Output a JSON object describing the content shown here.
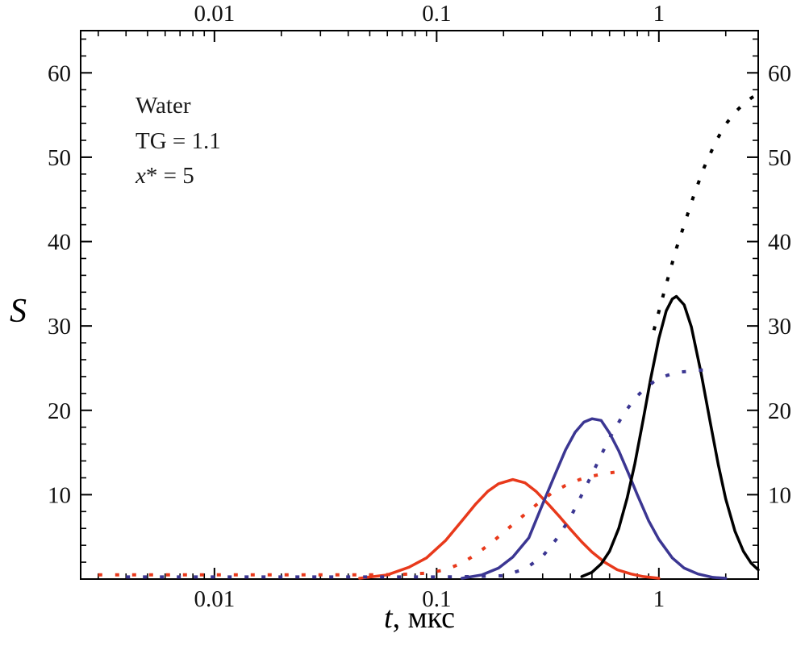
{
  "figure": {
    "annotation": {
      "line1": "Water",
      "line2": "TG = 1.1",
      "line3_var": "x",
      "line3_rest": "* = 5"
    },
    "xlabel_var": "t",
    "xlabel_rest": ", мкс",
    "ylabel": "S"
  },
  "chart_data": {
    "type": "line",
    "title": "",
    "x_scale": "log",
    "xlabel": "t, мкс",
    "ylabel": "S",
    "xlim": [
      0.0025,
      2.8
    ],
    "ylim": [
      0,
      65
    ],
    "grid": false,
    "legend": "none",
    "annotations": [
      "Water",
      "TG = 1.1",
      "x* = 5"
    ],
    "x_ticks": [
      {
        "v": 0.01,
        "label": "0.01"
      },
      {
        "v": 0.1,
        "label": "0.1"
      },
      {
        "v": 1,
        "label": "1"
      }
    ],
    "y_ticks": [
      {
        "v": 10,
        "label": "10"
      },
      {
        "v": 20,
        "label": "20"
      },
      {
        "v": 30,
        "label": "30"
      },
      {
        "v": 40,
        "label": "40"
      },
      {
        "v": 50,
        "label": "50"
      },
      {
        "v": 60,
        "label": "60"
      }
    ],
    "colors": {
      "red": "#e8391b",
      "blue": "#3b3692",
      "black": "#000000"
    },
    "series": [
      {
        "name": "red-solid-peak",
        "color": "#e8391b",
        "line_style": "solid",
        "x": [
          0.045,
          0.06,
          0.075,
          0.09,
          0.11,
          0.13,
          0.15,
          0.17,
          0.19,
          0.22,
          0.25,
          0.28,
          0.32,
          0.36,
          0.4,
          0.45,
          0.5,
          0.57,
          0.65,
          0.75,
          0.85,
          1.0
        ],
        "y": [
          0.1,
          0.5,
          1.4,
          2.5,
          4.6,
          6.9,
          8.9,
          10.4,
          11.3,
          11.8,
          11.4,
          10.4,
          8.8,
          7.3,
          5.9,
          4.4,
          3.2,
          2.0,
          1.1,
          0.6,
          0.3,
          0.1
        ]
      },
      {
        "name": "blue-solid-peak",
        "color": "#3b3692",
        "line_style": "solid",
        "x": [
          0.13,
          0.16,
          0.19,
          0.22,
          0.26,
          0.3,
          0.34,
          0.38,
          0.42,
          0.46,
          0.5,
          0.55,
          0.6,
          0.66,
          0.73,
          0.8,
          0.9,
          1.0,
          1.15,
          1.3,
          1.5,
          1.75,
          2.0
        ],
        "y": [
          0.1,
          0.5,
          1.3,
          2.6,
          4.9,
          8.9,
          12.3,
          15.3,
          17.4,
          18.6,
          19.0,
          18.8,
          17.3,
          15.2,
          12.5,
          10.0,
          6.9,
          4.7,
          2.5,
          1.3,
          0.6,
          0.2,
          0.1
        ]
      },
      {
        "name": "black-solid-peak",
        "color": "#000000",
        "line_style": "solid",
        "x": [
          0.45,
          0.5,
          0.55,
          0.6,
          0.66,
          0.72,
          0.78,
          0.85,
          0.92,
          1.0,
          1.08,
          1.15,
          1.2,
          1.3,
          1.4,
          1.55,
          1.7,
          1.85,
          2.0,
          2.2,
          2.4,
          2.6,
          2.8
        ],
        "y": [
          0.3,
          0.8,
          1.8,
          3.3,
          6.0,
          9.6,
          13.7,
          18.9,
          23.8,
          28.5,
          31.8,
          33.2,
          33.5,
          32.5,
          29.9,
          24.4,
          18.7,
          13.6,
          9.5,
          5.7,
          3.3,
          1.9,
          1.1
        ]
      },
      {
        "name": "red-dotted-cumulative",
        "color": "#e8391b",
        "line_style": "dashed",
        "x": [
          0.003,
          0.005,
          0.008,
          0.013,
          0.02,
          0.03,
          0.05,
          0.07,
          0.09,
          0.11,
          0.13,
          0.15,
          0.18,
          0.21,
          0.25,
          0.29,
          0.33,
          0.38,
          0.44,
          0.5,
          0.57,
          0.65,
          0.7
        ],
        "y": [
          0.5,
          0.5,
          0.5,
          0.5,
          0.5,
          0.5,
          0.5,
          0.55,
          0.7,
          1.1,
          1.9,
          2.9,
          4.5,
          6.0,
          7.7,
          9.1,
          10.2,
          11.1,
          11.8,
          12.2,
          12.5,
          12.7,
          12.8
        ]
      },
      {
        "name": "blue-dotted-cumulative",
        "color": "#3b3692",
        "line_style": "dashed",
        "x": [
          0.004,
          0.007,
          0.011,
          0.018,
          0.028,
          0.045,
          0.07,
          0.1,
          0.15,
          0.2,
          0.25,
          0.3,
          0.35,
          0.4,
          0.45,
          0.5,
          0.55,
          0.6,
          0.65,
          0.7,
          0.78,
          0.85,
          0.95,
          1.05,
          1.2,
          1.35,
          1.5,
          1.65
        ],
        "y": [
          0.25,
          0.25,
          0.25,
          0.25,
          0.25,
          0.25,
          0.25,
          0.25,
          0.3,
          0.4,
          1.2,
          2.7,
          4.9,
          7.3,
          10.0,
          12.4,
          14.7,
          16.7,
          18.3,
          19.7,
          21.4,
          22.4,
          23.4,
          24.0,
          24.5,
          24.6,
          24.75,
          24.8
        ]
      },
      {
        "name": "black-dotted-cumulative",
        "color": "#000000",
        "line_style": "dashed",
        "x": [
          0.95,
          1.0,
          1.05,
          1.1,
          1.2,
          1.3,
          1.45,
          1.6,
          1.8,
          2.0,
          2.2,
          2.4,
          2.6,
          2.75
        ],
        "y": [
          29.5,
          31.7,
          33.8,
          35.7,
          39.2,
          42.0,
          45.8,
          48.8,
          51.8,
          53.9,
          55.3,
          56.3,
          57.0,
          57.4
        ]
      }
    ]
  }
}
